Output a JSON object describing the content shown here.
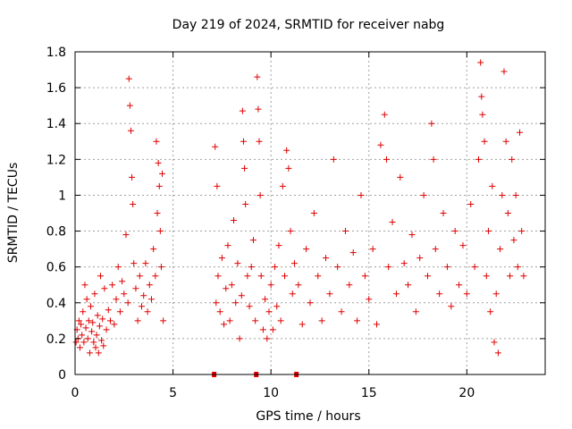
{
  "chart_data": {
    "type": "scatter",
    "title": "Day 219 of 2024, SRMTID for receiver nabg",
    "xlabel": "GPS time / hours",
    "ylabel": "SRMTID / TECUs",
    "xlim": [
      0,
      24
    ],
    "ylim": [
      0,
      1.8
    ],
    "xticks": [
      0,
      5,
      10,
      15,
      20
    ],
    "xtick_labels": [
      "0",
      "5",
      "10",
      "15",
      "20"
    ],
    "yticks": [
      0,
      0.2,
      0.4,
      0.6,
      0.8,
      1.0,
      1.2,
      1.4,
      1.6,
      1.8
    ],
    "ytick_labels": [
      "0",
      "0.2",
      "0.4",
      "0.6",
      "0.8",
      "1",
      "1.2",
      "1.4",
      "1.6",
      "1.8"
    ],
    "grid": true,
    "marker": "plus",
    "colors": {
      "series": "#e00000",
      "grid": "#a0a0a0",
      "axis": "#000000"
    },
    "zero_markers_x": [
      7.1,
      9.25,
      11.3
    ],
    "series": [
      {
        "name": "SRMTID",
        "points": [
          [
            0.05,
            0.18
          ],
          [
            0.1,
            0.25
          ],
          [
            0.15,
            0.2
          ],
          [
            0.2,
            0.3
          ],
          [
            0.25,
            0.15
          ],
          [
            0.3,
            0.28
          ],
          [
            0.35,
            0.22
          ],
          [
            0.4,
            0.35
          ],
          [
            0.45,
            0.18
          ],
          [
            0.5,
            0.5
          ],
          [
            0.55,
            0.26
          ],
          [
            0.6,
            0.42
          ],
          [
            0.65,
            0.2
          ],
          [
            0.7,
            0.3
          ],
          [
            0.75,
            0.12
          ],
          [
            0.8,
            0.38
          ],
          [
            0.85,
            0.24
          ],
          [
            0.9,
            0.29
          ],
          [
            0.95,
            0.18
          ],
          [
            1.0,
            0.45
          ],
          [
            1.05,
            0.15
          ],
          [
            1.1,
            0.22
          ],
          [
            1.15,
            0.33
          ],
          [
            1.2,
            0.12
          ],
          [
            1.25,
            0.27
          ],
          [
            1.3,
            0.55
          ],
          [
            1.35,
            0.19
          ],
          [
            1.4,
            0.31
          ],
          [
            1.45,
            0.16
          ],
          [
            1.5,
            0.48
          ],
          [
            1.6,
            0.25
          ],
          [
            1.7,
            0.36
          ],
          [
            1.8,
            0.3
          ],
          [
            1.9,
            0.5
          ],
          [
            2.0,
            0.28
          ],
          [
            2.1,
            0.42
          ],
          [
            2.2,
            0.6
          ],
          [
            2.3,
            0.35
          ],
          [
            2.4,
            0.52
          ],
          [
            2.5,
            0.45
          ],
          [
            2.6,
            0.78
          ],
          [
            2.7,
            0.4
          ],
          [
            2.75,
            1.65
          ],
          [
            2.8,
            1.5
          ],
          [
            2.85,
            1.36
          ],
          [
            2.9,
            1.1
          ],
          [
            2.95,
            0.95
          ],
          [
            3.0,
            0.62
          ],
          [
            3.1,
            0.48
          ],
          [
            3.2,
            0.3
          ],
          [
            3.3,
            0.55
          ],
          [
            3.4,
            0.38
          ],
          [
            3.5,
            0.44
          ],
          [
            3.6,
            0.62
          ],
          [
            3.7,
            0.35
          ],
          [
            3.8,
            0.5
          ],
          [
            3.9,
            0.42
          ],
          [
            4.0,
            0.7
          ],
          [
            4.1,
            0.55
          ],
          [
            4.15,
            1.3
          ],
          [
            4.2,
            0.9
          ],
          [
            4.25,
            1.18
          ],
          [
            4.3,
            1.05
          ],
          [
            4.35,
            0.8
          ],
          [
            4.4,
            0.6
          ],
          [
            4.45,
            1.12
          ],
          [
            4.5,
            0.3
          ],
          [
            7.15,
            1.27
          ],
          [
            7.2,
            0.4
          ],
          [
            7.25,
            1.05
          ],
          [
            7.3,
            0.55
          ],
          [
            7.4,
            0.35
          ],
          [
            7.5,
            0.65
          ],
          [
            7.6,
            0.28
          ],
          [
            7.7,
            0.48
          ],
          [
            7.8,
            0.72
          ],
          [
            7.9,
            0.3
          ],
          [
            8.0,
            0.5
          ],
          [
            8.1,
            0.86
          ],
          [
            8.2,
            0.4
          ],
          [
            8.3,
            0.62
          ],
          [
            8.4,
            0.2
          ],
          [
            8.5,
            0.44
          ],
          [
            8.55,
            1.47
          ],
          [
            8.6,
            1.3
          ],
          [
            8.65,
            1.15
          ],
          [
            8.7,
            0.95
          ],
          [
            8.8,
            0.55
          ],
          [
            8.9,
            0.38
          ],
          [
            9.0,
            0.6
          ],
          [
            9.1,
            0.75
          ],
          [
            9.2,
            0.3
          ],
          [
            9.3,
            1.66
          ],
          [
            9.35,
            1.48
          ],
          [
            9.4,
            1.3
          ],
          [
            9.45,
            1.0
          ],
          [
            9.5,
            0.55
          ],
          [
            9.6,
            0.25
          ],
          [
            9.7,
            0.42
          ],
          [
            9.8,
            0.2
          ],
          [
            9.9,
            0.35
          ],
          [
            10.0,
            0.5
          ],
          [
            10.1,
            0.25
          ],
          [
            10.2,
            0.6
          ],
          [
            10.3,
            0.38
          ],
          [
            10.4,
            0.72
          ],
          [
            10.5,
            0.3
          ],
          [
            10.6,
            1.05
          ],
          [
            10.7,
            0.55
          ],
          [
            10.8,
            1.25
          ],
          [
            10.9,
            1.15
          ],
          [
            11.0,
            0.8
          ],
          [
            11.1,
            0.45
          ],
          [
            11.2,
            0.62
          ],
          [
            11.4,
            0.5
          ],
          [
            11.6,
            0.28
          ],
          [
            11.8,
            0.7
          ],
          [
            12.0,
            0.4
          ],
          [
            12.2,
            0.9
          ],
          [
            12.4,
            0.55
          ],
          [
            12.6,
            0.3
          ],
          [
            12.8,
            0.65
          ],
          [
            13.0,
            0.45
          ],
          [
            13.2,
            1.2
          ],
          [
            13.4,
            0.6
          ],
          [
            13.6,
            0.35
          ],
          [
            13.8,
            0.8
          ],
          [
            14.0,
            0.5
          ],
          [
            14.2,
            0.68
          ],
          [
            14.4,
            0.3
          ],
          [
            14.6,
            1.0
          ],
          [
            14.8,
            0.55
          ],
          [
            15.0,
            0.42
          ],
          [
            15.2,
            0.7
          ],
          [
            15.4,
            0.28
          ],
          [
            15.6,
            1.28
          ],
          [
            15.8,
            1.45
          ],
          [
            15.9,
            1.2
          ],
          [
            16.0,
            0.6
          ],
          [
            16.2,
            0.85
          ],
          [
            16.4,
            0.45
          ],
          [
            16.6,
            1.1
          ],
          [
            16.8,
            0.62
          ],
          [
            17.0,
            0.5
          ],
          [
            17.2,
            0.78
          ],
          [
            17.4,
            0.35
          ],
          [
            17.6,
            0.65
          ],
          [
            17.8,
            1.0
          ],
          [
            18.0,
            0.55
          ],
          [
            18.2,
            1.4
          ],
          [
            18.3,
            1.2
          ],
          [
            18.4,
            0.7
          ],
          [
            18.6,
            0.45
          ],
          [
            18.8,
            0.9
          ],
          [
            19.0,
            0.6
          ],
          [
            19.2,
            0.38
          ],
          [
            19.4,
            0.8
          ],
          [
            19.6,
            0.5
          ],
          [
            19.8,
            0.72
          ],
          [
            20.0,
            0.45
          ],
          [
            20.2,
            0.95
          ],
          [
            20.4,
            0.6
          ],
          [
            20.6,
            1.2
          ],
          [
            20.7,
            1.74
          ],
          [
            20.75,
            1.55
          ],
          [
            20.8,
            1.45
          ],
          [
            20.9,
            1.3
          ],
          [
            21.0,
            0.55
          ],
          [
            21.1,
            0.8
          ],
          [
            21.2,
            0.35
          ],
          [
            21.3,
            1.05
          ],
          [
            21.4,
            0.18
          ],
          [
            21.5,
            0.45
          ],
          [
            21.6,
            0.12
          ],
          [
            21.7,
            0.7
          ],
          [
            21.8,
            1.0
          ],
          [
            21.9,
            1.69
          ],
          [
            22.0,
            1.3
          ],
          [
            22.1,
            0.9
          ],
          [
            22.2,
            0.55
          ],
          [
            22.3,
            1.2
          ],
          [
            22.4,
            0.75
          ],
          [
            22.5,
            1.0
          ],
          [
            22.6,
            0.6
          ],
          [
            22.7,
            1.35
          ],
          [
            22.8,
            0.8
          ],
          [
            22.9,
            0.55
          ]
        ]
      }
    ]
  }
}
